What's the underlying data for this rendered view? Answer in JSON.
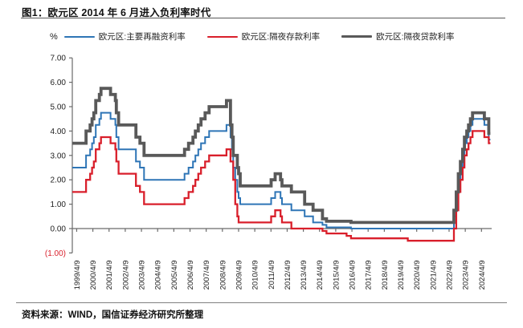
{
  "title": "图1：欧元区 2014 年 6 月进入负利率时代",
  "source": "资料来源：WIND，国信证券经济研究所整理",
  "chart_data": {
    "type": "line",
    "step": true,
    "unit_label": "%",
    "legend_position": "top",
    "grid": false,
    "axis_color": "#6a6a6a",
    "tick_label_color": "#222222",
    "negative_label_color": "#D91F2B",
    "ylim": [
      -1,
      7
    ],
    "xlim": [
      1999.0,
      2024.9
    ],
    "x_data_end": 2024.82,
    "y_ticks": [
      {
        "v": 7,
        "label": "7.00"
      },
      {
        "v": 6,
        "label": "6.00"
      },
      {
        "v": 5,
        "label": "5.00"
      },
      {
        "v": 4,
        "label": "4.00"
      },
      {
        "v": 3,
        "label": "3.00"
      },
      {
        "v": 2,
        "label": "2.00"
      },
      {
        "v": 1,
        "label": "1.00"
      },
      {
        "v": 0,
        "label": "0.00"
      },
      {
        "v": -1,
        "label": "(1.00)",
        "negative": true
      }
    ],
    "x_ticks": [
      {
        "year": 1999.27,
        "label": "1999/4/9"
      },
      {
        "year": 2000.27,
        "label": "2000/4/9"
      },
      {
        "year": 2001.27,
        "label": "2001/4/9"
      },
      {
        "year": 2002.27,
        "label": "2002/4/9"
      },
      {
        "year": 2003.27,
        "label": "2003/4/9"
      },
      {
        "year": 2004.27,
        "label": "2004/4/9"
      },
      {
        "year": 2005.27,
        "label": "2005/4/9"
      },
      {
        "year": 2006.27,
        "label": "2006/4/9"
      },
      {
        "year": 2007.27,
        "label": "2007/4/9"
      },
      {
        "year": 2008.27,
        "label": "2008/4/9"
      },
      {
        "year": 2009.27,
        "label": "2009/4/9"
      },
      {
        "year": 2010.27,
        "label": "2010/4/9"
      },
      {
        "year": 2011.27,
        "label": "2011/4/9"
      },
      {
        "year": 2012.27,
        "label": "2012/4/9"
      },
      {
        "year": 2013.27,
        "label": "2013/4/9"
      },
      {
        "year": 2014.27,
        "label": "2014/4/9"
      },
      {
        "year": 2015.27,
        "label": "2015/4/9"
      },
      {
        "year": 2016.27,
        "label": "2016/4/9"
      },
      {
        "year": 2017.27,
        "label": "2017/4/9"
      },
      {
        "year": 2018.27,
        "label": "2018/4/9"
      },
      {
        "year": 2019.27,
        "label": "2019/4/9"
      },
      {
        "year": 2020.27,
        "label": "2020/4/9"
      },
      {
        "year": 2021.27,
        "label": "2021/4/9"
      },
      {
        "year": 2022.27,
        "label": "2022/4/9"
      },
      {
        "year": 2023.27,
        "label": "2023/4/9"
      },
      {
        "year": 2024.27,
        "label": "2024/4/9"
      }
    ],
    "series": [
      {
        "name": "欧元区:主要再融资利率",
        "color": "#2E75B6",
        "stroke_width": 2,
        "points": [
          [
            1999.0,
            2.5
          ],
          [
            1999.85,
            3.0
          ],
          [
            2000.1,
            3.25
          ],
          [
            2000.22,
            3.5
          ],
          [
            2000.33,
            3.75
          ],
          [
            2000.45,
            4.25
          ],
          [
            2000.67,
            4.5
          ],
          [
            2000.77,
            4.75
          ],
          [
            2001.36,
            4.5
          ],
          [
            2001.66,
            4.25
          ],
          [
            2001.72,
            3.75
          ],
          [
            2001.86,
            3.25
          ],
          [
            2002.93,
            2.75
          ],
          [
            2003.18,
            2.5
          ],
          [
            2003.43,
            2.0
          ],
          [
            2005.93,
            2.25
          ],
          [
            2006.18,
            2.5
          ],
          [
            2006.45,
            2.75
          ],
          [
            2006.6,
            3.0
          ],
          [
            2006.78,
            3.25
          ],
          [
            2006.95,
            3.5
          ],
          [
            2007.2,
            3.75
          ],
          [
            2007.45,
            4.0
          ],
          [
            2008.52,
            4.25
          ],
          [
            2008.77,
            3.75
          ],
          [
            2008.86,
            3.25
          ],
          [
            2008.94,
            2.5
          ],
          [
            2009.06,
            2.0
          ],
          [
            2009.19,
            1.5
          ],
          [
            2009.27,
            1.25
          ],
          [
            2009.37,
            1.0
          ],
          [
            2011.28,
            1.25
          ],
          [
            2011.53,
            1.5
          ],
          [
            2011.86,
            1.25
          ],
          [
            2011.95,
            1.0
          ],
          [
            2012.53,
            0.75
          ],
          [
            2013.35,
            0.5
          ],
          [
            2013.87,
            0.25
          ],
          [
            2014.45,
            0.15
          ],
          [
            2014.7,
            0.05
          ],
          [
            2016.21,
            0.0
          ],
          [
            2022.57,
            0.5
          ],
          [
            2022.71,
            1.25
          ],
          [
            2022.84,
            2.0
          ],
          [
            2022.97,
            2.5
          ],
          [
            2023.11,
            3.0
          ],
          [
            2023.22,
            3.5
          ],
          [
            2023.36,
            3.75
          ],
          [
            2023.47,
            4.0
          ],
          [
            2023.59,
            4.25
          ],
          [
            2023.72,
            4.5
          ],
          [
            2024.45,
            4.25
          ],
          [
            2024.72,
            3.65
          ]
        ]
      },
      {
        "name": "欧元区:隔夜存款利率",
        "color": "#D91F2B",
        "stroke_width": 2.3,
        "points": [
          [
            1999.0,
            1.5
          ],
          [
            1999.85,
            2.0
          ],
          [
            2000.1,
            2.25
          ],
          [
            2000.22,
            2.5
          ],
          [
            2000.33,
            2.75
          ],
          [
            2000.45,
            3.25
          ],
          [
            2000.67,
            3.5
          ],
          [
            2000.77,
            3.75
          ],
          [
            2001.36,
            3.5
          ],
          [
            2001.66,
            3.25
          ],
          [
            2001.72,
            2.75
          ],
          [
            2001.86,
            2.25
          ],
          [
            2002.93,
            1.75
          ],
          [
            2003.18,
            1.5
          ],
          [
            2003.43,
            1.0
          ],
          [
            2005.93,
            1.25
          ],
          [
            2006.18,
            1.5
          ],
          [
            2006.45,
            1.75
          ],
          [
            2006.6,
            2.0
          ],
          [
            2006.78,
            2.25
          ],
          [
            2006.95,
            2.5
          ],
          [
            2007.2,
            2.75
          ],
          [
            2007.45,
            3.0
          ],
          [
            2008.52,
            3.25
          ],
          [
            2008.77,
            2.75
          ],
          [
            2008.94,
            2.0
          ],
          [
            2009.06,
            1.0
          ],
          [
            2009.19,
            0.5
          ],
          [
            2009.27,
            0.25
          ],
          [
            2011.28,
            0.5
          ],
          [
            2011.53,
            0.75
          ],
          [
            2011.86,
            0.5
          ],
          [
            2011.95,
            0.25
          ],
          [
            2012.53,
            0.0
          ],
          [
            2014.45,
            -0.1
          ],
          [
            2014.7,
            -0.2
          ],
          [
            2015.94,
            -0.3
          ],
          [
            2016.21,
            -0.4
          ],
          [
            2019.72,
            -0.5
          ],
          [
            2022.57,
            0.0
          ],
          [
            2022.71,
            0.75
          ],
          [
            2022.84,
            1.5
          ],
          [
            2022.97,
            2.0
          ],
          [
            2023.11,
            2.5
          ],
          [
            2023.22,
            3.0
          ],
          [
            2023.36,
            3.25
          ],
          [
            2023.47,
            3.5
          ],
          [
            2023.59,
            3.75
          ],
          [
            2023.72,
            4.0
          ],
          [
            2024.45,
            3.75
          ],
          [
            2024.72,
            3.5
          ]
        ]
      },
      {
        "name": "欧元区:隔夜贷款利率",
        "color": "#595959",
        "stroke_width": 3.8,
        "points": [
          [
            1999.0,
            3.5
          ],
          [
            1999.85,
            4.0
          ],
          [
            2000.1,
            4.25
          ],
          [
            2000.22,
            4.5
          ],
          [
            2000.33,
            4.75
          ],
          [
            2000.45,
            5.25
          ],
          [
            2000.67,
            5.5
          ],
          [
            2000.77,
            5.75
          ],
          [
            2001.36,
            5.5
          ],
          [
            2001.66,
            5.25
          ],
          [
            2001.72,
            4.75
          ],
          [
            2001.86,
            4.25
          ],
          [
            2002.93,
            3.75
          ],
          [
            2003.18,
            3.5
          ],
          [
            2003.43,
            3.0
          ],
          [
            2005.93,
            3.25
          ],
          [
            2006.18,
            3.5
          ],
          [
            2006.45,
            3.75
          ],
          [
            2006.6,
            4.0
          ],
          [
            2006.78,
            4.25
          ],
          [
            2006.95,
            4.5
          ],
          [
            2007.2,
            4.75
          ],
          [
            2007.45,
            5.0
          ],
          [
            2008.52,
            5.25
          ],
          [
            2008.77,
            4.25
          ],
          [
            2008.86,
            3.75
          ],
          [
            2008.94,
            3.0
          ],
          [
            2009.19,
            2.5
          ],
          [
            2009.27,
            2.25
          ],
          [
            2009.37,
            1.75
          ],
          [
            2011.28,
            2.0
          ],
          [
            2011.53,
            2.25
          ],
          [
            2011.86,
            2.0
          ],
          [
            2011.95,
            1.75
          ],
          [
            2012.53,
            1.5
          ],
          [
            2013.35,
            1.0
          ],
          [
            2013.87,
            0.75
          ],
          [
            2014.45,
            0.4
          ],
          [
            2014.7,
            0.3
          ],
          [
            2016.21,
            0.25
          ],
          [
            2022.57,
            0.75
          ],
          [
            2022.71,
            1.5
          ],
          [
            2022.84,
            2.25
          ],
          [
            2022.97,
            2.75
          ],
          [
            2023.11,
            3.25
          ],
          [
            2023.22,
            3.75
          ],
          [
            2023.36,
            4.0
          ],
          [
            2023.47,
            4.25
          ],
          [
            2023.59,
            4.5
          ],
          [
            2023.72,
            4.75
          ],
          [
            2024.45,
            4.5
          ],
          [
            2024.72,
            3.9
          ]
        ]
      }
    ]
  }
}
